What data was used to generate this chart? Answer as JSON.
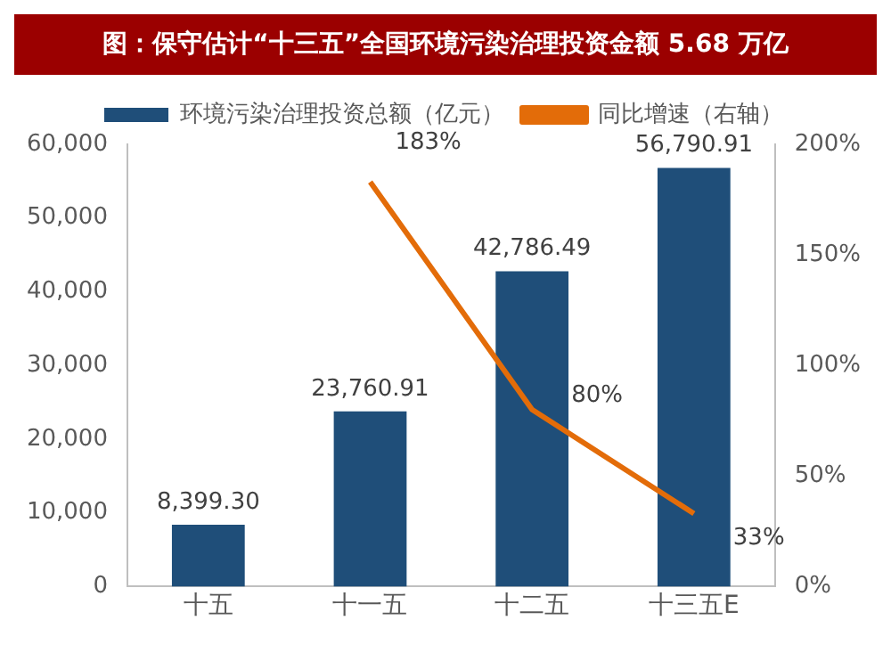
{
  "chart_data": {
    "type": "bar",
    "title": "图：保守估计“十三五”全国环境污染治理投资金额 5.68 万亿",
    "categories": [
      "十五",
      "十一五",
      "十二五",
      "十三五E"
    ],
    "series": [
      {
        "name": "环境污染治理投资总额（亿元）",
        "color": "#1f4e79",
        "values": [
          8399.3,
          23760.91,
          42786.49,
          56790.91
        ],
        "value_labels": [
          "8,399.30",
          "23,760.91",
          "42,786.49",
          "56,790.91"
        ]
      },
      {
        "name": "同比增速（右轴）",
        "type": "line",
        "axis": "y2",
        "color": "#e36c09",
        "values": [
          null,
          183,
          80,
          33
        ],
        "value_labels": [
          null,
          "183%",
          "80%",
          "33%"
        ]
      }
    ],
    "ylim": [
      0,
      60000
    ],
    "yticks": [
      0,
      {
        "value": 10000,
        "label": "10,000"
      },
      {
        "value": 20000,
        "label": "20,000"
      },
      {
        "value": 30000,
        "label": "30,000"
      },
      {
        "value": 40000,
        "label": "40,000"
      },
      {
        "value": 50000,
        "label": "50,000"
      },
      {
        "value": 60000,
        "label": "60,000"
      }
    ],
    "y2lim": [
      0,
      200
    ],
    "y2ticks": [
      {
        "value": 0,
        "label": "0%"
      },
      {
        "value": 50,
        "label": "50%"
      },
      {
        "value": 100,
        "label": "100%"
      },
      {
        "value": 150,
        "label": "150%"
      },
      {
        "value": 200,
        "label": "200%"
      }
    ],
    "grid": false,
    "legend": "top",
    "marker": "none"
  }
}
